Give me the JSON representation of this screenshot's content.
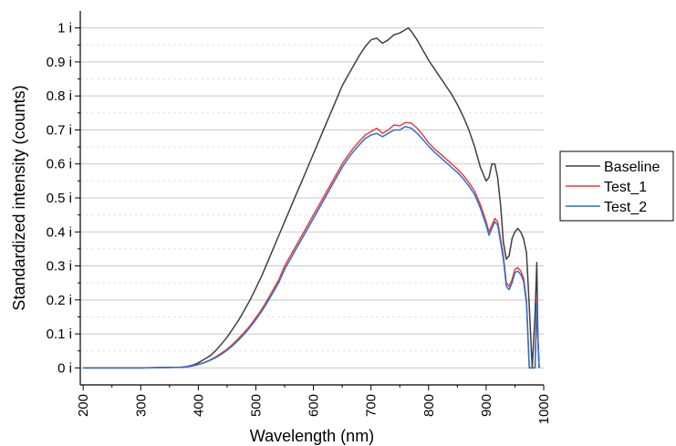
{
  "chart_data": {
    "type": "line",
    "title": "",
    "xlabel": "Wavelength (nm)",
    "ylabel": "Standardized intensity (counts)",
    "xlim": [
      195,
      1000
    ],
    "ylim": [
      -0.05,
      1.05
    ],
    "x_ticks": [
      200,
      300,
      400,
      500,
      600,
      700,
      800,
      900,
      1000
    ],
    "x_tick_labels": [
      "200",
      "300",
      "400",
      "500",
      "600",
      "700",
      "800",
      "900",
      "1000"
    ],
    "y_ticks": [
      0,
      0.1,
      0.2,
      0.3,
      0.4,
      0.5,
      0.6,
      0.7,
      0.8,
      0.9,
      1.0
    ],
    "y_tick_labels": [
      "0 i",
      "0.1 i",
      "0.2 i",
      "0.3 i",
      "0.4 i",
      "0.5 i",
      "0.6 i",
      "0.7 i",
      "0.8 i",
      "0.9 i",
      "1 i"
    ],
    "grid": {
      "major_y": true,
      "minor_y": true,
      "x": false
    },
    "legend_position": "right",
    "colors": {
      "Baseline": "#404040",
      "Test_1": "#e8413c",
      "Test_2": "#2f6fd0"
    },
    "series": [
      {
        "name": "Baseline",
        "x": [
          200,
          300,
          370,
          380,
          390,
          400,
          410,
          420,
          430,
          440,
          450,
          460,
          470,
          480,
          490,
          500,
          510,
          520,
          530,
          540,
          550,
          560,
          570,
          580,
          590,
          600,
          610,
          620,
          630,
          640,
          650,
          660,
          670,
          680,
          690,
          700,
          710,
          720,
          730,
          740,
          750,
          760,
          765,
          770,
          780,
          790,
          800,
          810,
          820,
          830,
          840,
          850,
          860,
          870,
          880,
          890,
          900,
          905,
          910,
          915,
          920,
          925,
          930,
          935,
          940,
          945,
          950,
          955,
          960,
          965,
          970,
          975,
          980,
          985,
          988,
          990,
          992
        ],
        "y": [
          0,
          0,
          0.002,
          0.004,
          0.008,
          0.015,
          0.025,
          0.035,
          0.05,
          0.07,
          0.09,
          0.115,
          0.14,
          0.17,
          0.2,
          0.235,
          0.27,
          0.31,
          0.35,
          0.39,
          0.43,
          0.47,
          0.51,
          0.55,
          0.59,
          0.63,
          0.67,
          0.71,
          0.75,
          0.79,
          0.83,
          0.86,
          0.89,
          0.92,
          0.945,
          0.965,
          0.97,
          0.955,
          0.965,
          0.98,
          0.985,
          0.995,
          1.0,
          0.99,
          0.965,
          0.935,
          0.905,
          0.88,
          0.855,
          0.83,
          0.805,
          0.775,
          0.74,
          0.7,
          0.65,
          0.59,
          0.55,
          0.56,
          0.6,
          0.6,
          0.56,
          0.48,
          0.37,
          0.32,
          0.33,
          0.38,
          0.4,
          0.41,
          0.4,
          0.38,
          0.34,
          0.18,
          0.0,
          0.16,
          0.31,
          0.08,
          0.0
        ]
      },
      {
        "name": "Test_1",
        "x": [
          200,
          300,
          370,
          380,
          390,
          400,
          410,
          420,
          430,
          440,
          450,
          460,
          470,
          480,
          490,
          500,
          510,
          520,
          530,
          540,
          550,
          560,
          570,
          580,
          590,
          600,
          610,
          620,
          630,
          640,
          650,
          660,
          670,
          680,
          690,
          700,
          710,
          720,
          730,
          740,
          750,
          760,
          770,
          780,
          790,
          800,
          810,
          820,
          830,
          840,
          850,
          860,
          870,
          880,
          890,
          900,
          905,
          910,
          915,
          920,
          925,
          930,
          935,
          940,
          945,
          950,
          955,
          960,
          965,
          970,
          975,
          980,
          985,
          988,
          990,
          992
        ],
        "y": [
          0,
          0,
          0.002,
          0.003,
          0.006,
          0.01,
          0.016,
          0.023,
          0.032,
          0.043,
          0.055,
          0.07,
          0.087,
          0.105,
          0.125,
          0.148,
          0.172,
          0.2,
          0.23,
          0.26,
          0.3,
          0.33,
          0.36,
          0.39,
          0.42,
          0.45,
          0.48,
          0.51,
          0.54,
          0.57,
          0.6,
          0.625,
          0.648,
          0.667,
          0.685,
          0.695,
          0.705,
          0.69,
          0.7,
          0.715,
          0.712,
          0.722,
          0.72,
          0.705,
          0.685,
          0.662,
          0.645,
          0.63,
          0.615,
          0.6,
          0.585,
          0.567,
          0.545,
          0.52,
          0.48,
          0.43,
          0.4,
          0.42,
          0.44,
          0.43,
          0.38,
          0.33,
          0.25,
          0.24,
          0.26,
          0.29,
          0.295,
          0.285,
          0.265,
          0.2,
          0.0,
          0.0,
          0.0,
          0.2,
          0.09,
          0.0
        ]
      },
      {
        "name": "Test_2",
        "x": [
          200,
          300,
          370,
          380,
          390,
          400,
          410,
          420,
          430,
          440,
          450,
          460,
          470,
          480,
          490,
          500,
          510,
          520,
          530,
          540,
          550,
          560,
          570,
          580,
          590,
          600,
          610,
          620,
          630,
          640,
          650,
          660,
          670,
          680,
          690,
          700,
          710,
          720,
          730,
          740,
          750,
          760,
          770,
          780,
          790,
          800,
          810,
          820,
          830,
          840,
          850,
          860,
          870,
          880,
          890,
          900,
          905,
          910,
          915,
          920,
          925,
          930,
          935,
          940,
          945,
          950,
          955,
          960,
          965,
          970,
          975,
          980,
          985,
          988,
          990,
          992
        ],
        "y": [
          0,
          0,
          0.002,
          0.003,
          0.006,
          0.01,
          0.015,
          0.022,
          0.03,
          0.04,
          0.052,
          0.066,
          0.082,
          0.1,
          0.12,
          0.142,
          0.166,
          0.193,
          0.222,
          0.252,
          0.29,
          0.32,
          0.35,
          0.38,
          0.41,
          0.44,
          0.47,
          0.5,
          0.53,
          0.56,
          0.59,
          0.615,
          0.638,
          0.657,
          0.675,
          0.685,
          0.69,
          0.68,
          0.69,
          0.7,
          0.7,
          0.71,
          0.705,
          0.69,
          0.672,
          0.652,
          0.635,
          0.62,
          0.605,
          0.59,
          0.575,
          0.557,
          0.535,
          0.51,
          0.47,
          0.42,
          0.39,
          0.41,
          0.43,
          0.42,
          0.37,
          0.32,
          0.24,
          0.23,
          0.25,
          0.28,
          0.285,
          0.275,
          0.255,
          0.19,
          0.0,
          0.0,
          0.0,
          0.19,
          0.08,
          0.0
        ]
      }
    ]
  }
}
